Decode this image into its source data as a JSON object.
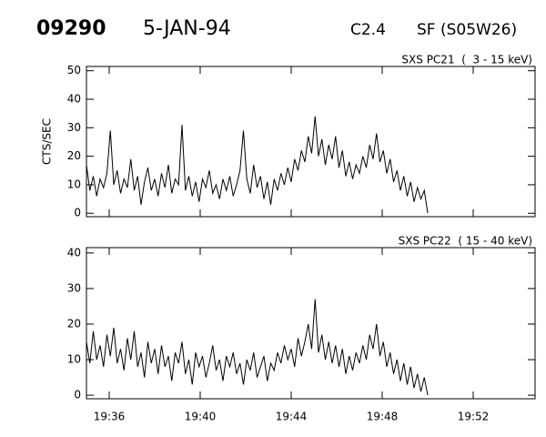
{
  "header": {
    "event": "09290",
    "date": "5-JAN-94",
    "class": "C2.4",
    "location": "SF (S05W26)"
  },
  "chart_data": [
    {
      "type": "line",
      "title": "SXS PC21  (  3 - 15 keV)",
      "y_label": "CTS/SEC",
      "color": "#000000",
      "xlim": [
        35,
        54.72
      ],
      "ylim": [
        -1.2,
        51.5
      ],
      "yticks": [
        0,
        10,
        20,
        30,
        40,
        50
      ],
      "x": [
        35,
        35.15,
        35.3,
        35.45,
        35.6,
        35.75,
        35.9,
        36.05,
        36.2,
        36.35,
        36.5,
        36.65,
        36.8,
        36.95,
        37.1,
        37.25,
        37.4,
        37.55,
        37.7,
        37.85,
        38,
        38.15,
        38.3,
        38.45,
        38.6,
        38.75,
        38.9,
        39.05,
        39.2,
        39.35,
        39.5,
        39.65,
        39.8,
        39.95,
        40.1,
        40.25,
        40.4,
        40.55,
        40.7,
        40.85,
        41,
        41.15,
        41.3,
        41.45,
        41.6,
        41.75,
        41.9,
        42.05,
        42.2,
        42.35,
        42.5,
        42.65,
        42.8,
        42.95,
        43.1,
        43.25,
        43.4,
        43.55,
        43.7,
        43.85,
        44,
        44.15,
        44.3,
        44.45,
        44.6,
        44.75,
        44.9,
        45.05,
        45.2,
        45.35,
        45.5,
        45.65,
        45.8,
        45.95,
        46.1,
        46.25,
        46.4,
        46.55,
        46.7,
        46.85,
        47,
        47.15,
        47.3,
        47.45,
        47.6,
        47.75,
        47.9,
        48.05,
        48.2,
        48.35,
        48.5,
        48.65,
        48.8,
        48.95,
        49.1,
        49.25,
        49.4,
        49.55,
        49.7,
        49.85,
        50
      ],
      "values": [
        17,
        8,
        13,
        6,
        12,
        9,
        14,
        29,
        10,
        15,
        7,
        12,
        9,
        19,
        8,
        13,
        3,
        11,
        16,
        8,
        12,
        6,
        14,
        9,
        17,
        7,
        12,
        10,
        31,
        8,
        13,
        6,
        11,
        4,
        12,
        9,
        15,
        7,
        10,
        5,
        12,
        8,
        13,
        6,
        10,
        15,
        29,
        12,
        7,
        17,
        9,
        13,
        5,
        11,
        3,
        12,
        8,
        14,
        10,
        16,
        11,
        19,
        15,
        22,
        18,
        27,
        21,
        34,
        20,
        26,
        17,
        24,
        19,
        27,
        16,
        22,
        13,
        18,
        12,
        17,
        14,
        20,
        16,
        24,
        19,
        28,
        18,
        22,
        14,
        19,
        11,
        15,
        8,
        13,
        6,
        11,
        4,
        9,
        5,
        8,
        0
      ]
    },
    {
      "type": "line",
      "title": "SXS PC22  ( 15 - 40 keV)",
      "color": "#000000",
      "xlim": [
        35,
        54.72
      ],
      "ylim": [
        -1,
        41.5
      ],
      "yticks": [
        0,
        10,
        20,
        30,
        40
      ],
      "xticks": [
        {
          "value": 36,
          "label": "19:36"
        },
        {
          "value": 40,
          "label": "19:40"
        },
        {
          "value": 44,
          "label": "19:44"
        },
        {
          "value": 48,
          "label": "19:48"
        },
        {
          "value": 52,
          "label": "19:52"
        }
      ],
      "x": [
        35,
        35.15,
        35.3,
        35.45,
        35.6,
        35.75,
        35.9,
        36.05,
        36.2,
        36.35,
        36.5,
        36.65,
        36.8,
        36.95,
        37.1,
        37.25,
        37.4,
        37.55,
        37.7,
        37.85,
        38,
        38.15,
        38.3,
        38.45,
        38.6,
        38.75,
        38.9,
        39.05,
        39.2,
        39.35,
        39.5,
        39.65,
        39.8,
        39.95,
        40.1,
        40.25,
        40.4,
        40.55,
        40.7,
        40.85,
        41,
        41.15,
        41.3,
        41.45,
        41.6,
        41.75,
        41.9,
        42.05,
        42.2,
        42.35,
        42.5,
        42.65,
        42.8,
        42.95,
        43.1,
        43.25,
        43.4,
        43.55,
        43.7,
        43.85,
        44,
        44.15,
        44.3,
        44.45,
        44.6,
        44.75,
        44.9,
        45.05,
        45.2,
        45.35,
        45.5,
        45.65,
        45.8,
        45.95,
        46.1,
        46.25,
        46.4,
        46.55,
        46.7,
        46.85,
        47,
        47.15,
        47.3,
        47.45,
        47.6,
        47.75,
        47.9,
        48.05,
        48.2,
        48.35,
        48.5,
        48.65,
        48.8,
        48.95,
        49.1,
        49.25,
        49.4,
        49.55,
        49.7,
        49.85,
        50
      ],
      "values": [
        15,
        9,
        18,
        10,
        14,
        8,
        17,
        11,
        19,
        9,
        13,
        7,
        16,
        10,
        18,
        8,
        12,
        5,
        15,
        9,
        13,
        6,
        14,
        8,
        11,
        4,
        12,
        9,
        15,
        6,
        10,
        3,
        12,
        8,
        11,
        5,
        9,
        14,
        7,
        10,
        4,
        11,
        8,
        12,
        6,
        9,
        3,
        10,
        7,
        12,
        5,
        8,
        11,
        4,
        9,
        7,
        12,
        9,
        14,
        10,
        13,
        8,
        16,
        11,
        15,
        20,
        13,
        27,
        12,
        17,
        10,
        15,
        9,
        14,
        8,
        13,
        6,
        11,
        7,
        12,
        9,
        14,
        10,
        17,
        13,
        20,
        11,
        15,
        8,
        12,
        6,
        10,
        4,
        9,
        3,
        8,
        2,
        6,
        1,
        5,
        0
      ]
    }
  ]
}
